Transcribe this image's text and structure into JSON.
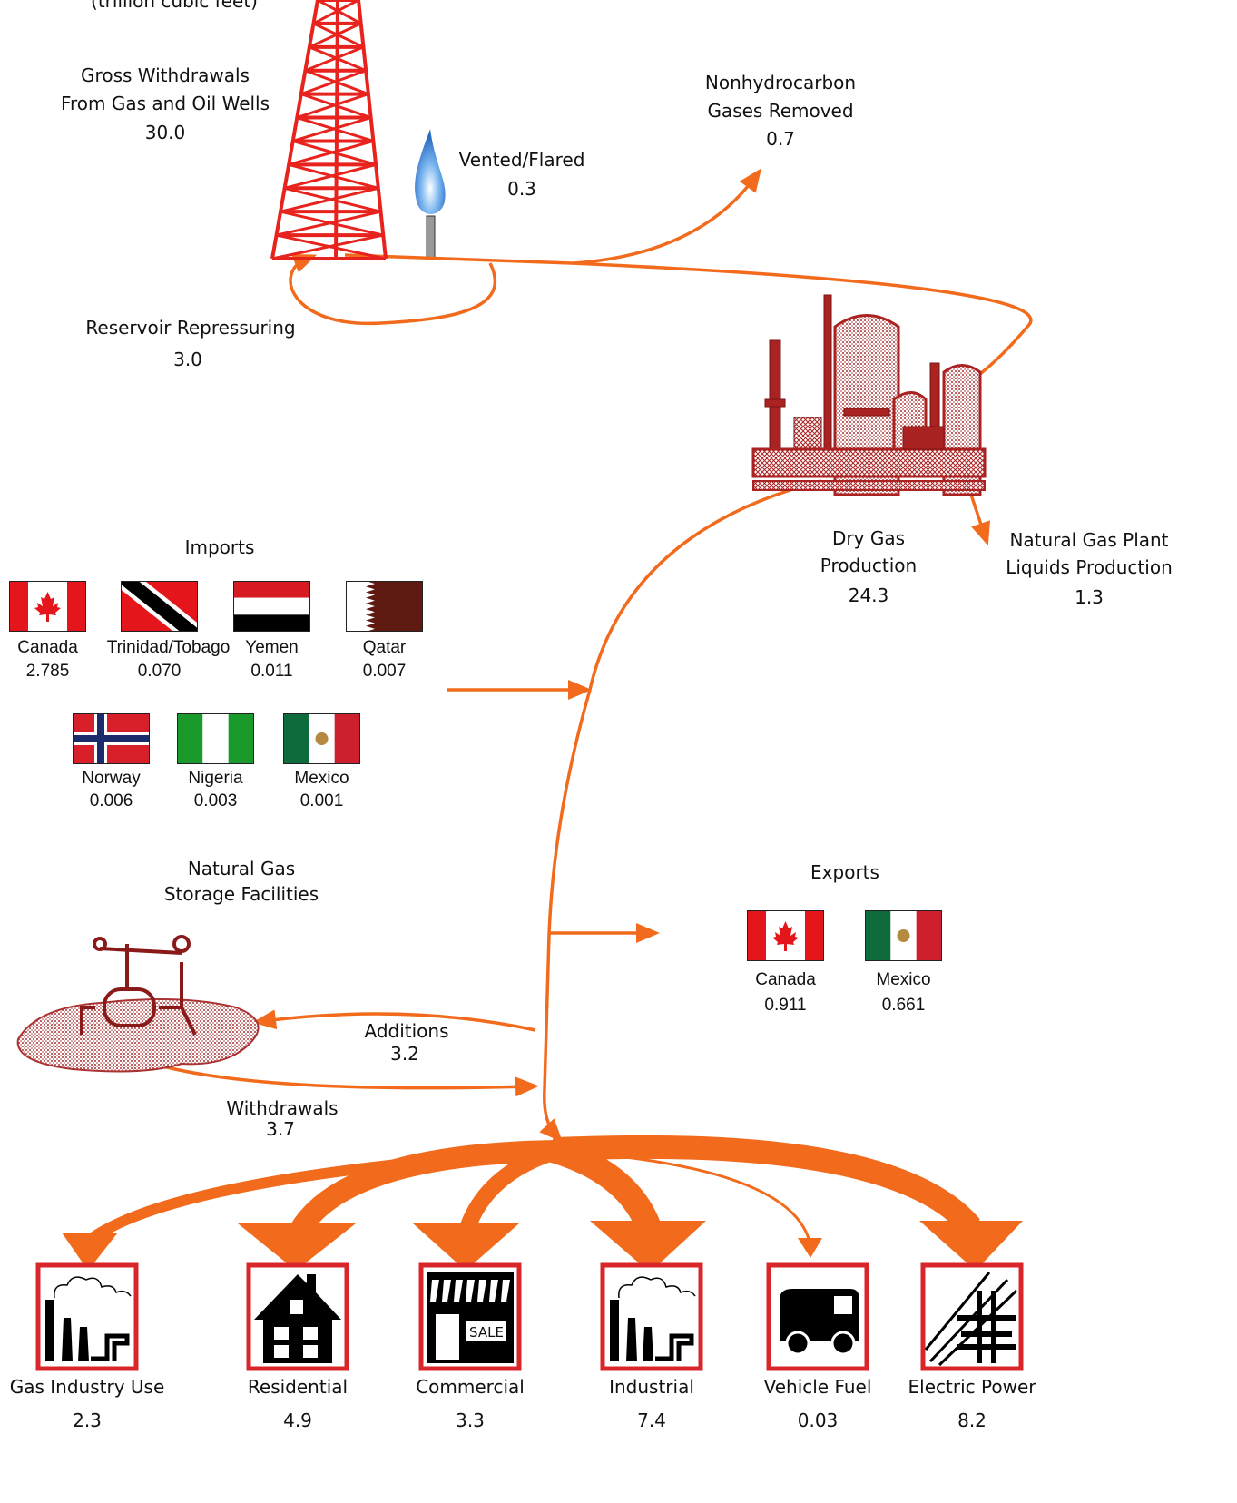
{
  "unit_note": "(trillion cubic feet)",
  "gross_withdrawals": {
    "label": [
      "Gross Withdrawals",
      "From Gas and Oil Wells"
    ],
    "value": "30.0"
  },
  "vented_flared": {
    "label": "Vented/Flared",
    "value": "0.3"
  },
  "nonhydrocarbon": {
    "label": [
      "Nonhydrocarbon",
      "Gases Removed"
    ],
    "value": "0.7"
  },
  "reservoir_repressuring": {
    "label": "Reservoir Repressuring",
    "value": "3.0"
  },
  "dry_gas": {
    "label": [
      "Dry Gas",
      "Production"
    ],
    "value": "24.3"
  },
  "plant_liquids": {
    "label": [
      "Natural Gas Plant",
      "Liquids Production"
    ],
    "value": "1.3"
  },
  "imports": {
    "title": "Imports",
    "countries": [
      {
        "name": "Canada",
        "value": "2.785"
      },
      {
        "name": "Trinidad/Tobago",
        "value": "0.070"
      },
      {
        "name": "Yemen",
        "value": "0.011"
      },
      {
        "name": "Qatar",
        "value": "0.007"
      },
      {
        "name": "Norway",
        "value": "0.006"
      },
      {
        "name": "Nigeria",
        "value": "0.003"
      },
      {
        "name": "Mexico",
        "value": "0.001"
      }
    ]
  },
  "storage": {
    "label": [
      "Natural Gas",
      "Storage Facilities"
    ],
    "additions": {
      "label": "Additions",
      "value": "3.2"
    },
    "withdrawals": {
      "label": "Withdrawals",
      "value": "3.7"
    }
  },
  "exports": {
    "title": "Exports",
    "countries": [
      {
        "name": "Canada",
        "value": "0.911"
      },
      {
        "name": "Mexico",
        "value": "0.661"
      }
    ]
  },
  "consumption": [
    {
      "label": "Gas Industry Use",
      "value": "2.3"
    },
    {
      "label": "Residential",
      "value": "4.9"
    },
    {
      "label": "Commercial",
      "value": "3.3",
      "sign": "SALE"
    },
    {
      "label": "Industrial",
      "value": "7.4"
    },
    {
      "label": "Vehicle Fuel",
      "value": "0.03"
    },
    {
      "label": "Electric Power",
      "value": "8.2"
    }
  ]
}
